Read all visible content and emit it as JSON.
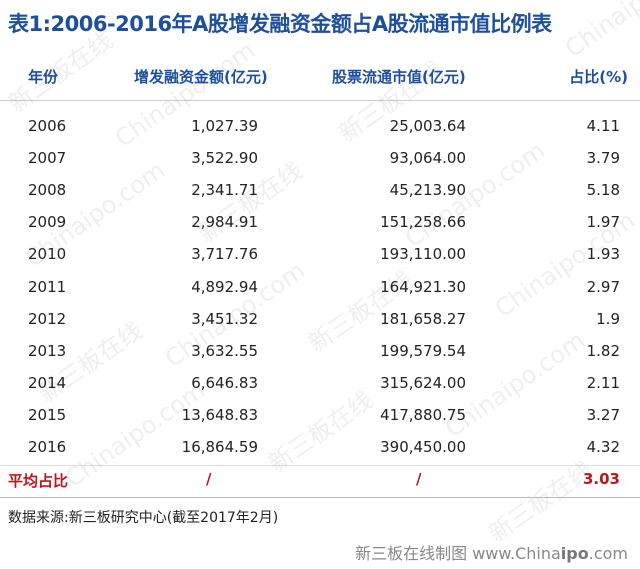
{
  "title": "表1:2006-2016年A股增发融资金额占A股流通市值比例表",
  "table": {
    "header": [
      "年份",
      "增发融资金额(亿元)",
      "股票流通市值(亿元)",
      "占比(%)"
    ],
    "rows": [
      [
        "2006",
        "1,027.39",
        "25,003.64",
        "4.11"
      ],
      [
        "2007",
        "3,522.90",
        "93,064.00",
        "3.79"
      ],
      [
        "2008",
        "2,341.71",
        "45,213.90",
        "5.18"
      ],
      [
        "2009",
        "2,984.91",
        "151,258.66",
        "1.97"
      ],
      [
        "2010",
        "3,717.76",
        "193,110.00",
        "1.93"
      ],
      [
        "2011",
        "4,892.94",
        "164,921.30",
        "2.97"
      ],
      [
        "2012",
        "3,451.32",
        "181,658.27",
        "1.9"
      ],
      [
        "2013",
        "3,632.55",
        "199,579.54",
        "1.82"
      ],
      [
        "2014",
        "6,646.83",
        "315,624.00",
        "2.11"
      ],
      [
        "2015",
        "13,648.83",
        "417,880.75",
        "3.27"
      ],
      [
        "2016",
        "16,864.59",
        "390,450.00",
        "4.32"
      ]
    ],
    "average": [
      "平均占比",
      "/",
      "/",
      "3.03"
    ]
  },
  "note": "数据来源:新三板研究中心(截至2017年2月)",
  "footer": [
    "新三板在线制图 www.China",
    "ipo",
    ".com"
  ],
  "watermarks": [
    "Chinaipo.com",
    "新三板在线"
  ]
}
